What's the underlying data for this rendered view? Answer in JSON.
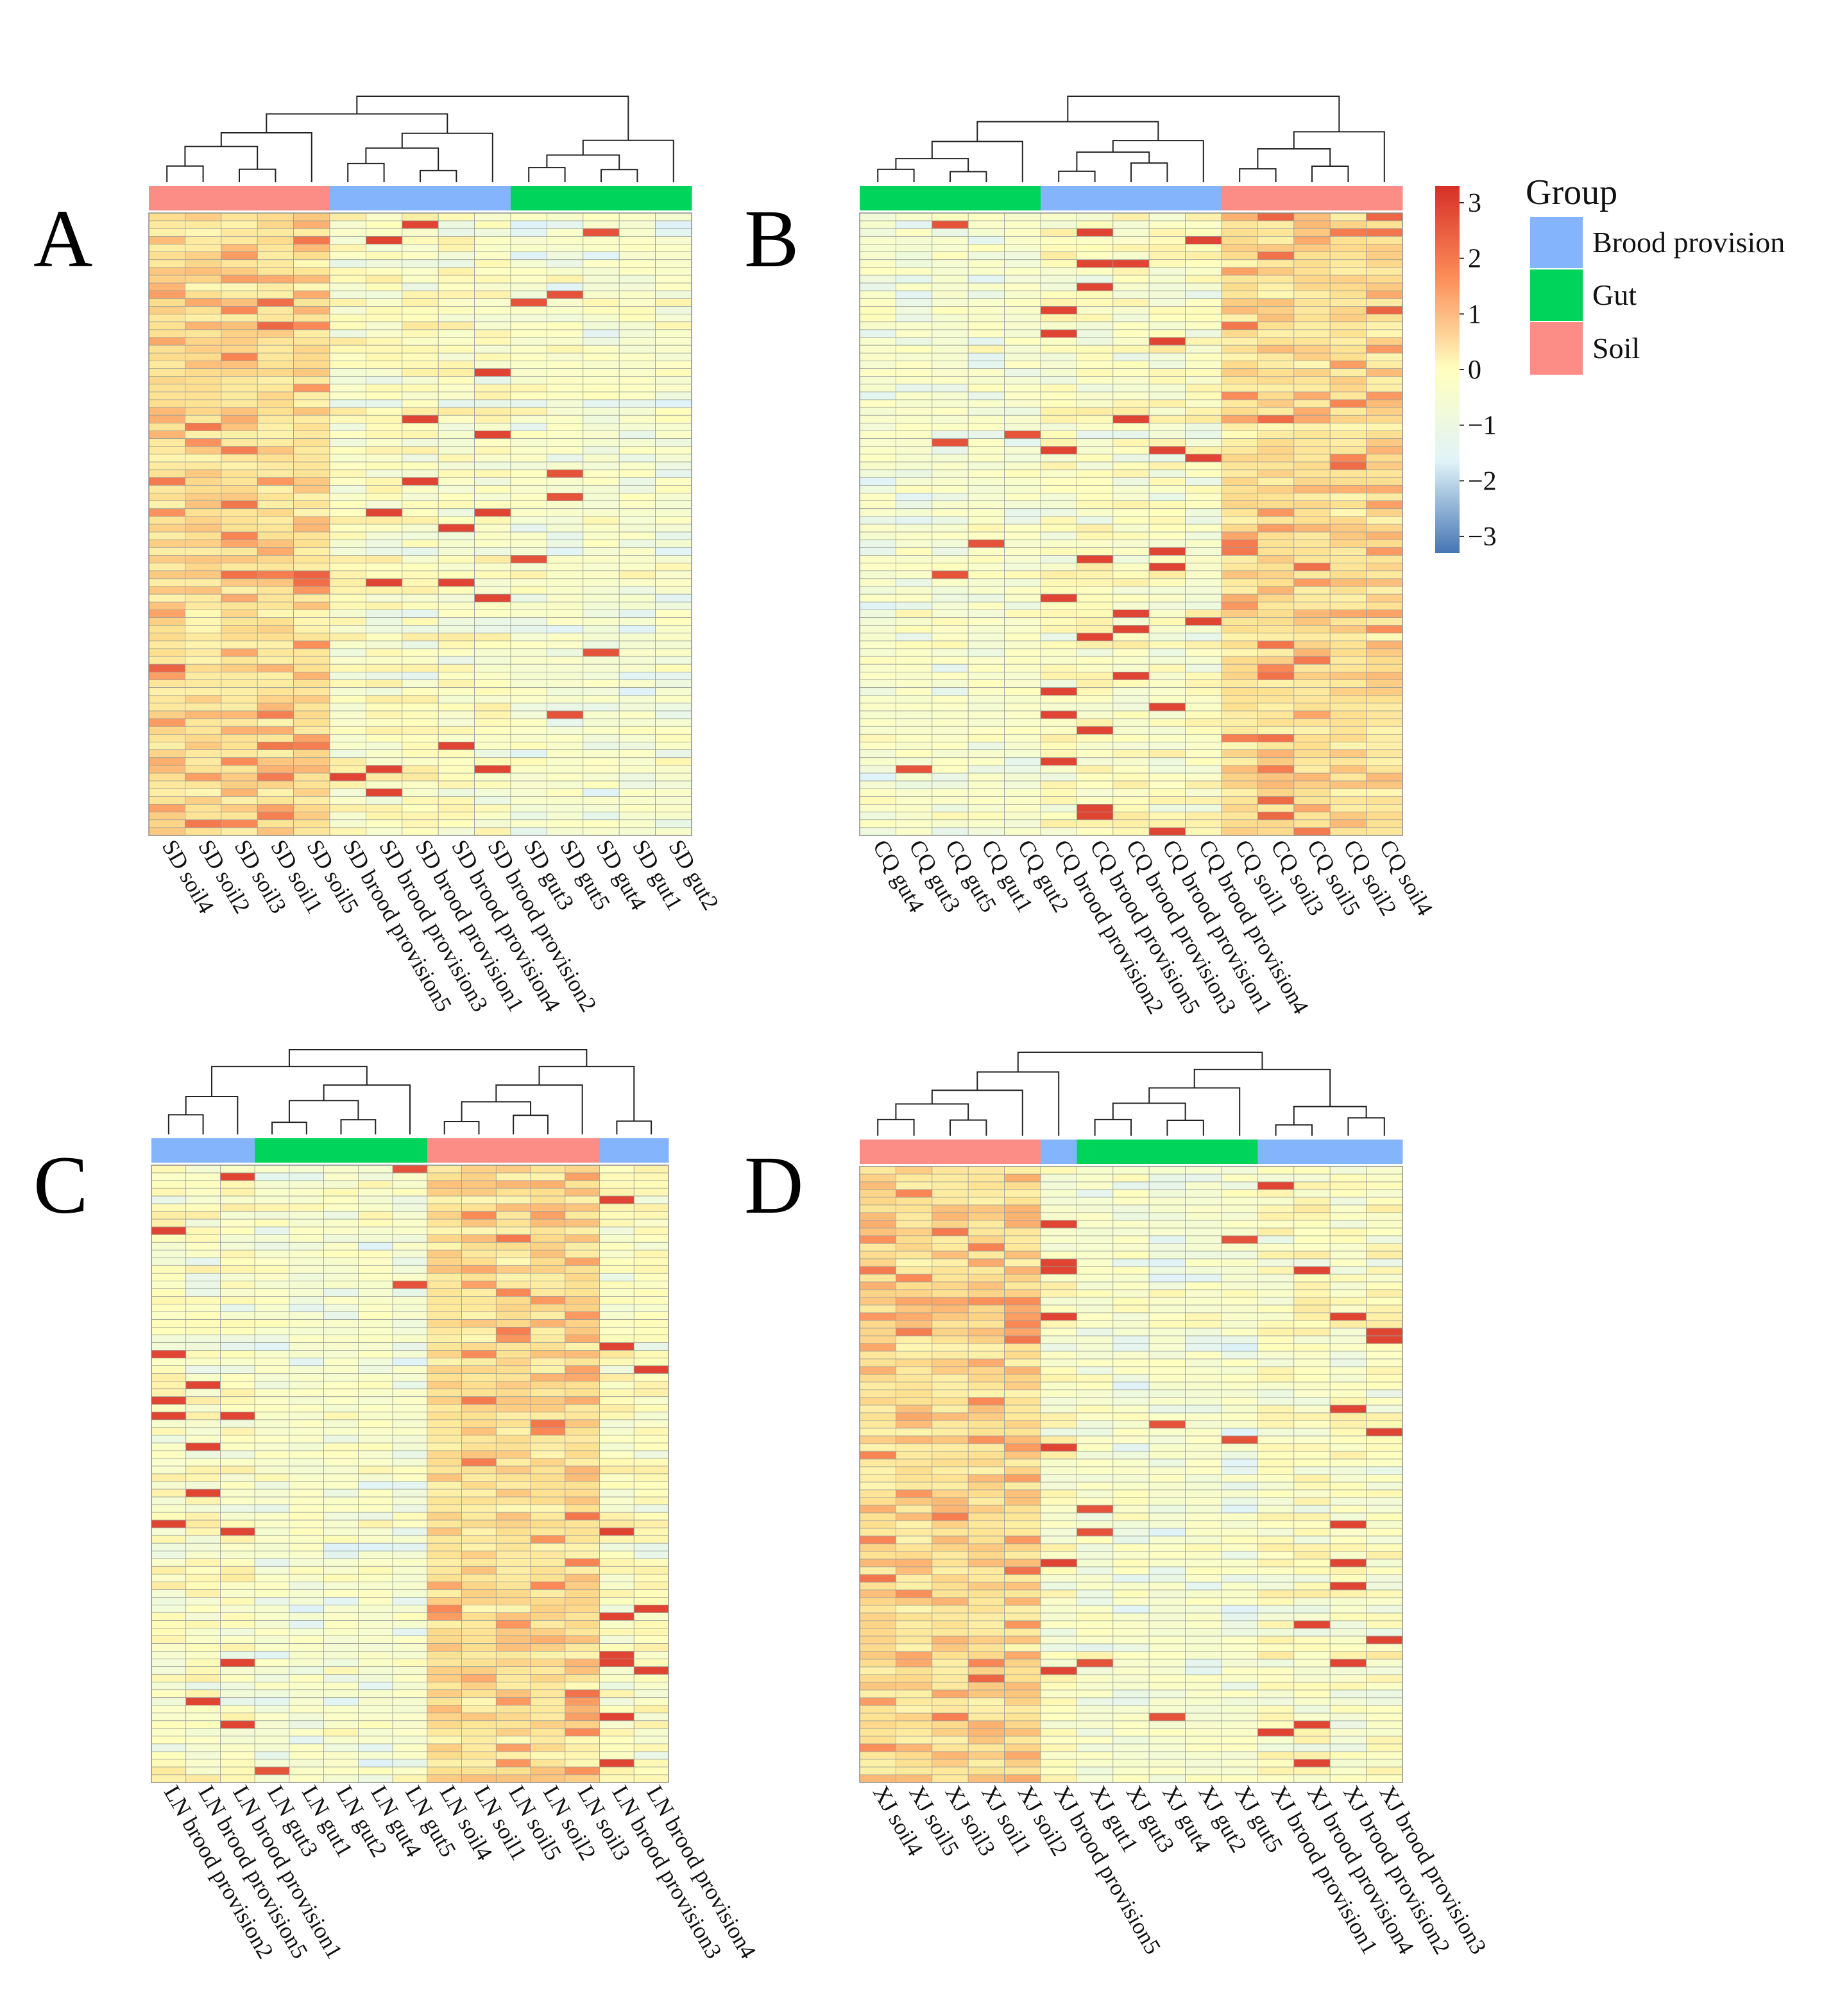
{
  "chart_data": [
    {
      "type": "heatmap",
      "panel_label": "A",
      "columns": [
        "SD soil4",
        "SD soil2",
        "SD soil3",
        "SD soil1",
        "SD soil5",
        "SD brood provision5",
        "SD brood provision3",
        "SD brood provision1",
        "SD brood provision4",
        "SD brood provision2",
        "SD gut3",
        "SD gut5",
        "SD gut4",
        "SD gut1",
        "SD gut2"
      ],
      "groups": [
        "Soil",
        "Soil",
        "Soil",
        "Soil",
        "Soil",
        "Brood provision",
        "Brood provision",
        "Brood provision",
        "Brood provision",
        "Brood provision",
        "Gut",
        "Gut",
        "Gut",
        "Gut",
        "Gut"
      ],
      "rows": 80,
      "value_range": [
        -3,
        3.3
      ]
    },
    {
      "type": "heatmap",
      "panel_label": "B",
      "columns": [
        "CQ gut4",
        "CQ gut3",
        "CQ gut5",
        "CQ gut1",
        "CQ gut2",
        "CQ brood provision2",
        "CQ brood provision5",
        "CQ brood provision3",
        "CQ brood provision1",
        "CQ brood provision4",
        "CQ soil1",
        "CQ soil3",
        "CQ soil5",
        "CQ soil2",
        "CQ soil4"
      ],
      "groups": [
        "Gut",
        "Gut",
        "Gut",
        "Gut",
        "Gut",
        "Brood provision",
        "Brood provision",
        "Brood provision",
        "Brood provision",
        "Brood provision",
        "Soil",
        "Soil",
        "Soil",
        "Soil",
        "Soil"
      ],
      "rows": 80,
      "value_range": [
        -3,
        3.3
      ]
    },
    {
      "type": "heatmap",
      "panel_label": "C",
      "columns": [
        "LN brood provision2",
        "LN brood provision5",
        "LN brood provision1",
        "LN gut3",
        "LN gut1",
        "LN gut2",
        "LN gut4",
        "LN gut5",
        "LN soil4",
        "LN soil1",
        "LN soil5",
        "LN soil2",
        "LN soil3",
        "LN brood provision3",
        "LN brood provision4"
      ],
      "groups": [
        "Brood provision",
        "Brood provision",
        "Brood provision",
        "Gut",
        "Gut",
        "Gut",
        "Gut",
        "Gut",
        "Soil",
        "Soil",
        "Soil",
        "Soil",
        "Soil",
        "Brood provision",
        "Brood provision"
      ],
      "rows": 80,
      "value_range": [
        -3,
        3.3
      ]
    },
    {
      "type": "heatmap",
      "panel_label": "D",
      "columns": [
        "XJ soil4",
        "XJ soil5",
        "XJ soil3",
        "XJ soil1",
        "XJ soil2",
        "XJ brood provision5",
        "XJ gut1",
        "XJ gut3",
        "XJ gut4",
        "XJ gut2",
        "XJ gut5",
        "XJ brood provision1",
        "XJ brood provision4",
        "XJ brood provision2",
        "XJ brood provision3"
      ],
      "groups": [
        "Soil",
        "Soil",
        "Soil",
        "Soil",
        "Soil",
        "Brood provision",
        "Gut",
        "Gut",
        "Gut",
        "Gut",
        "Gut",
        "Brood provision",
        "Brood provision",
        "Brood provision",
        "Brood provision"
      ],
      "rows": 80,
      "value_range": [
        -3,
        3.3
      ]
    }
  ],
  "legend": {
    "title": "Group",
    "items": [
      {
        "label": "Brood provision",
        "color": "#84b4fb"
      },
      {
        "label": "Gut",
        "color": "#00d45a"
      },
      {
        "label": "Soil",
        "color": "#fc8c86"
      }
    ]
  },
  "colorbar": {
    "ticks": [
      "3",
      "2",
      "1",
      "0",
      "−1",
      "−2",
      "−3"
    ],
    "tick_values": [
      3,
      2,
      1,
      0,
      -1,
      -2,
      -3
    ],
    "range": [
      -3.3,
      3.3
    ]
  }
}
